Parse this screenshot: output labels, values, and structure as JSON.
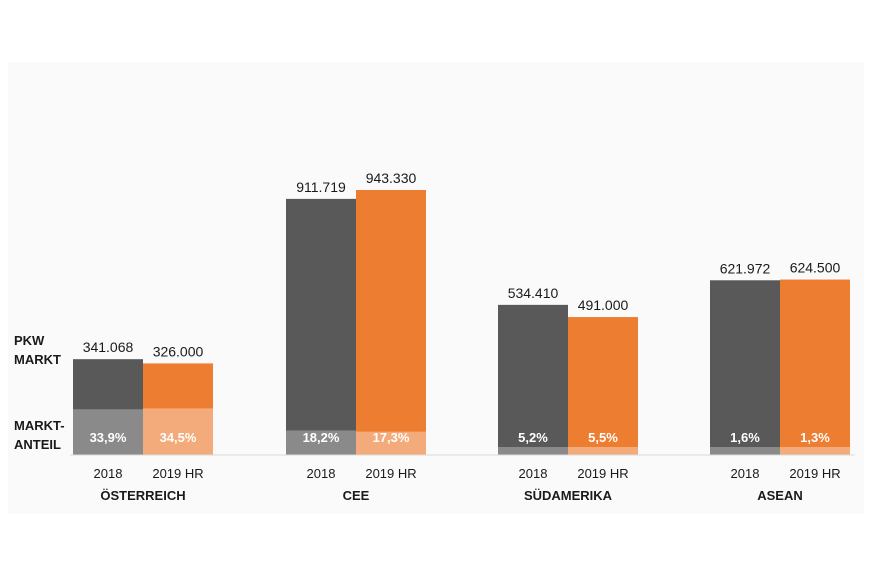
{
  "chart_data": {
    "type": "bar",
    "row_labels": {
      "market": [
        "PKW",
        "MARKT"
      ],
      "share": [
        "MARKT-",
        "ANTEIL"
      ]
    },
    "groups": [
      {
        "name": "ÖSTERREICH",
        "bars": [
          {
            "category": "2018",
            "value": 341068,
            "value_label": "341.068",
            "share": 33.9,
            "share_label": "33,9%"
          },
          {
            "category": "2019 HR",
            "value": 326000,
            "value_label": "326.000",
            "share": 34.5,
            "share_label": "34,5%"
          }
        ]
      },
      {
        "name": "CEE",
        "bars": [
          {
            "category": "2018",
            "value": 911719,
            "value_label": "911.719",
            "share": 18.2,
            "share_label": "18,2%"
          },
          {
            "category": "2019 HR",
            "value": 943330,
            "value_label": "943.330",
            "share": 17.3,
            "share_label": "17,3%"
          }
        ]
      },
      {
        "name": "SÜDAMERIKA",
        "bars": [
          {
            "category": "2018",
            "value": 534410,
            "value_label": "534.410",
            "share": 5.2,
            "share_label": "5,2%"
          },
          {
            "category": "2019 HR",
            "value": 491000,
            "value_label": "491.000",
            "share": 5.5,
            "share_label": "5,5%"
          }
        ]
      },
      {
        "name": "ASEAN",
        "bars": [
          {
            "category": "2018",
            "value": 621972,
            "value_label": "621.972",
            "share": 1.6,
            "share_label": "1,6%"
          },
          {
            "category": "2019 HR",
            "value": 624500,
            "value_label": "624.500",
            "share": 1.3,
            "share_label": "1,3%"
          }
        ]
      }
    ],
    "colors": {
      "2018": "#595959",
      "2018_share": "#8a8a8a",
      "2019 HR": "#ed7d31",
      "2019 HR_share": "#f4ab7b",
      "background": "#fafafa"
    },
    "ylim": [
      0,
      1000000
    ],
    "grid": false,
    "legend": "none"
  }
}
